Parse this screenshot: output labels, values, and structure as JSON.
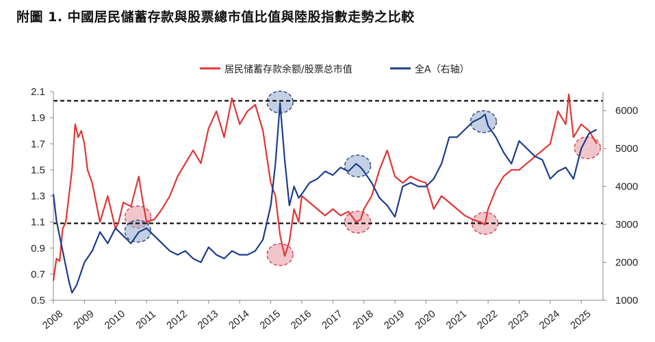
{
  "figure_title": "附圖 1. 中國居民儲蓄存款與股票總市值比值與陸股指數走勢之比較",
  "chart_data": {
    "type": "line",
    "x_ticks": [
      "2008",
      "2009",
      "2010",
      "2011",
      "2012",
      "2013",
      "2014",
      "2015",
      "2016",
      "2017",
      "2018",
      "2019",
      "2020",
      "2021",
      "2022",
      "2023",
      "2024",
      "2025"
    ],
    "y_left_ticks": [
      "2.1",
      "1.9",
      "1.7",
      "1.5",
      "1.3",
      "1.1",
      "0.9",
      "0.7",
      "0.5"
    ],
    "y_right_ticks": [
      "6000",
      "5000",
      "4000",
      "3000",
      "2000",
      "1000"
    ],
    "ylim_left": [
      0.5,
      2.1
    ],
    "ylim_right": [
      1000,
      6500
    ],
    "reference_lines_left_axis": [
      2.03,
      1.09
    ],
    "legend_position": "top-center",
    "colors": {
      "ratio": "#e03535",
      "index": "#1c3c8c",
      "ref_line": "#111111",
      "highlight_red": "#e8a0a6",
      "highlight_blue": "#9bb0d0"
    },
    "series": [
      {
        "name": "居民储蓄存款余额/股票总市值",
        "axis": "left",
        "x": [
          2008.0,
          2008.1,
          2008.2,
          2008.3,
          2008.4,
          2008.5,
          2008.6,
          2008.7,
          2008.8,
          2008.9,
          2009.0,
          2009.1,
          2009.25,
          2009.5,
          2009.75,
          2010.0,
          2010.1,
          2010.25,
          2010.5,
          2010.75,
          2010.85,
          2011.0,
          2011.25,
          2011.5,
          2011.75,
          2012.0,
          2012.25,
          2012.5,
          2012.75,
          2013.0,
          2013.25,
          2013.5,
          2013.75,
          2014.0,
          2014.25,
          2014.5,
          2014.75,
          2015.0,
          2015.15,
          2015.3,
          2015.45,
          2015.6,
          2015.75,
          2015.9,
          2016.0,
          2016.25,
          2016.5,
          2016.75,
          2017.0,
          2017.25,
          2017.5,
          2017.75,
          2017.9,
          2018.0,
          2018.25,
          2018.5,
          2018.75,
          2019.0,
          2019.25,
          2019.5,
          2019.75,
          2020.0,
          2020.25,
          2020.5,
          2020.75,
          2021.0,
          2021.25,
          2021.5,
          2021.75,
          2021.9,
          2022.0,
          2022.25,
          2022.5,
          2022.75,
          2023.0,
          2023.25,
          2023.5,
          2023.75,
          2024.0,
          2024.25,
          2024.5,
          2024.6,
          2024.75,
          2025.0,
          2025.25,
          2025.5
        ],
        "y": [
          0.65,
          0.82,
          0.8,
          1.05,
          1.1,
          1.3,
          1.5,
          1.85,
          1.75,
          1.8,
          1.7,
          1.5,
          1.4,
          1.1,
          1.3,
          1.05,
          1.1,
          1.25,
          1.22,
          1.45,
          1.3,
          1.1,
          1.12,
          1.2,
          1.3,
          1.45,
          1.55,
          1.65,
          1.55,
          1.82,
          1.95,
          1.75,
          2.05,
          1.85,
          1.95,
          2.0,
          1.8,
          1.4,
          1.3,
          1.0,
          0.84,
          0.95,
          1.2,
          1.1,
          1.3,
          1.25,
          1.2,
          1.15,
          1.2,
          1.15,
          1.18,
          1.1,
          1.12,
          1.2,
          1.3,
          1.5,
          1.65,
          1.45,
          1.4,
          1.45,
          1.42,
          1.4,
          1.2,
          1.3,
          1.25,
          1.2,
          1.15,
          1.12,
          1.1,
          1.08,
          1.2,
          1.35,
          1.45,
          1.5,
          1.5,
          1.55,
          1.6,
          1.65,
          1.7,
          1.95,
          1.85,
          2.08,
          1.75,
          1.85,
          1.8,
          1.7
        ]
      },
      {
        "name": "全A（右轴）",
        "axis": "right",
        "x": [
          2008.0,
          2008.1,
          2008.25,
          2008.5,
          2008.6,
          2008.75,
          2009.0,
          2009.25,
          2009.5,
          2009.75,
          2010.0,
          2010.25,
          2010.5,
          2010.75,
          2011.0,
          2011.25,
          2011.5,
          2011.75,
          2012.0,
          2012.25,
          2012.5,
          2012.75,
          2013.0,
          2013.25,
          2013.5,
          2013.75,
          2014.0,
          2014.25,
          2014.5,
          2014.75,
          2015.0,
          2015.15,
          2015.3,
          2015.45,
          2015.6,
          2015.75,
          2015.9,
          2016.0,
          2016.25,
          2016.5,
          2016.75,
          2017.0,
          2017.25,
          2017.5,
          2017.75,
          2017.9,
          2018.0,
          2018.25,
          2018.5,
          2018.75,
          2019.0,
          2019.25,
          2019.5,
          2019.75,
          2020.0,
          2020.25,
          2020.5,
          2020.75,
          2021.0,
          2021.25,
          2021.5,
          2021.75,
          2021.9,
          2022.0,
          2022.25,
          2022.5,
          2022.75,
          2023.0,
          2023.25,
          2023.5,
          2023.75,
          2024.0,
          2024.25,
          2024.5,
          2024.75,
          2025.0,
          2025.25,
          2025.5
        ],
        "y": [
          3800,
          3100,
          2500,
          1500,
          1200,
          1400,
          2000,
          2300,
          2800,
          2500,
          2900,
          2700,
          2500,
          2800,
          2900,
          2700,
          2500,
          2300,
          2200,
          2300,
          2100,
          2000,
          2400,
          2200,
          2100,
          2300,
          2200,
          2200,
          2300,
          2600,
          3500,
          4600,
          6200,
          4700,
          3500,
          4000,
          3700,
          3800,
          4100,
          4200,
          4400,
          4300,
          4500,
          4400,
          4600,
          4500,
          4400,
          4100,
          3700,
          3500,
          3200,
          4000,
          4100,
          4000,
          4000,
          4200,
          4600,
          5300,
          5300,
          5500,
          5700,
          5800,
          5900,
          5600,
          5300,
          4900,
          4600,
          5200,
          5000,
          4800,
          4700,
          4200,
          4400,
          4500,
          4200,
          5000,
          5400,
          5500
        ]
      }
    ]
  },
  "legend": {
    "ratio_label": "居民储蓄存款余额/股票总市值",
    "index_label": "全A（右轴）"
  }
}
